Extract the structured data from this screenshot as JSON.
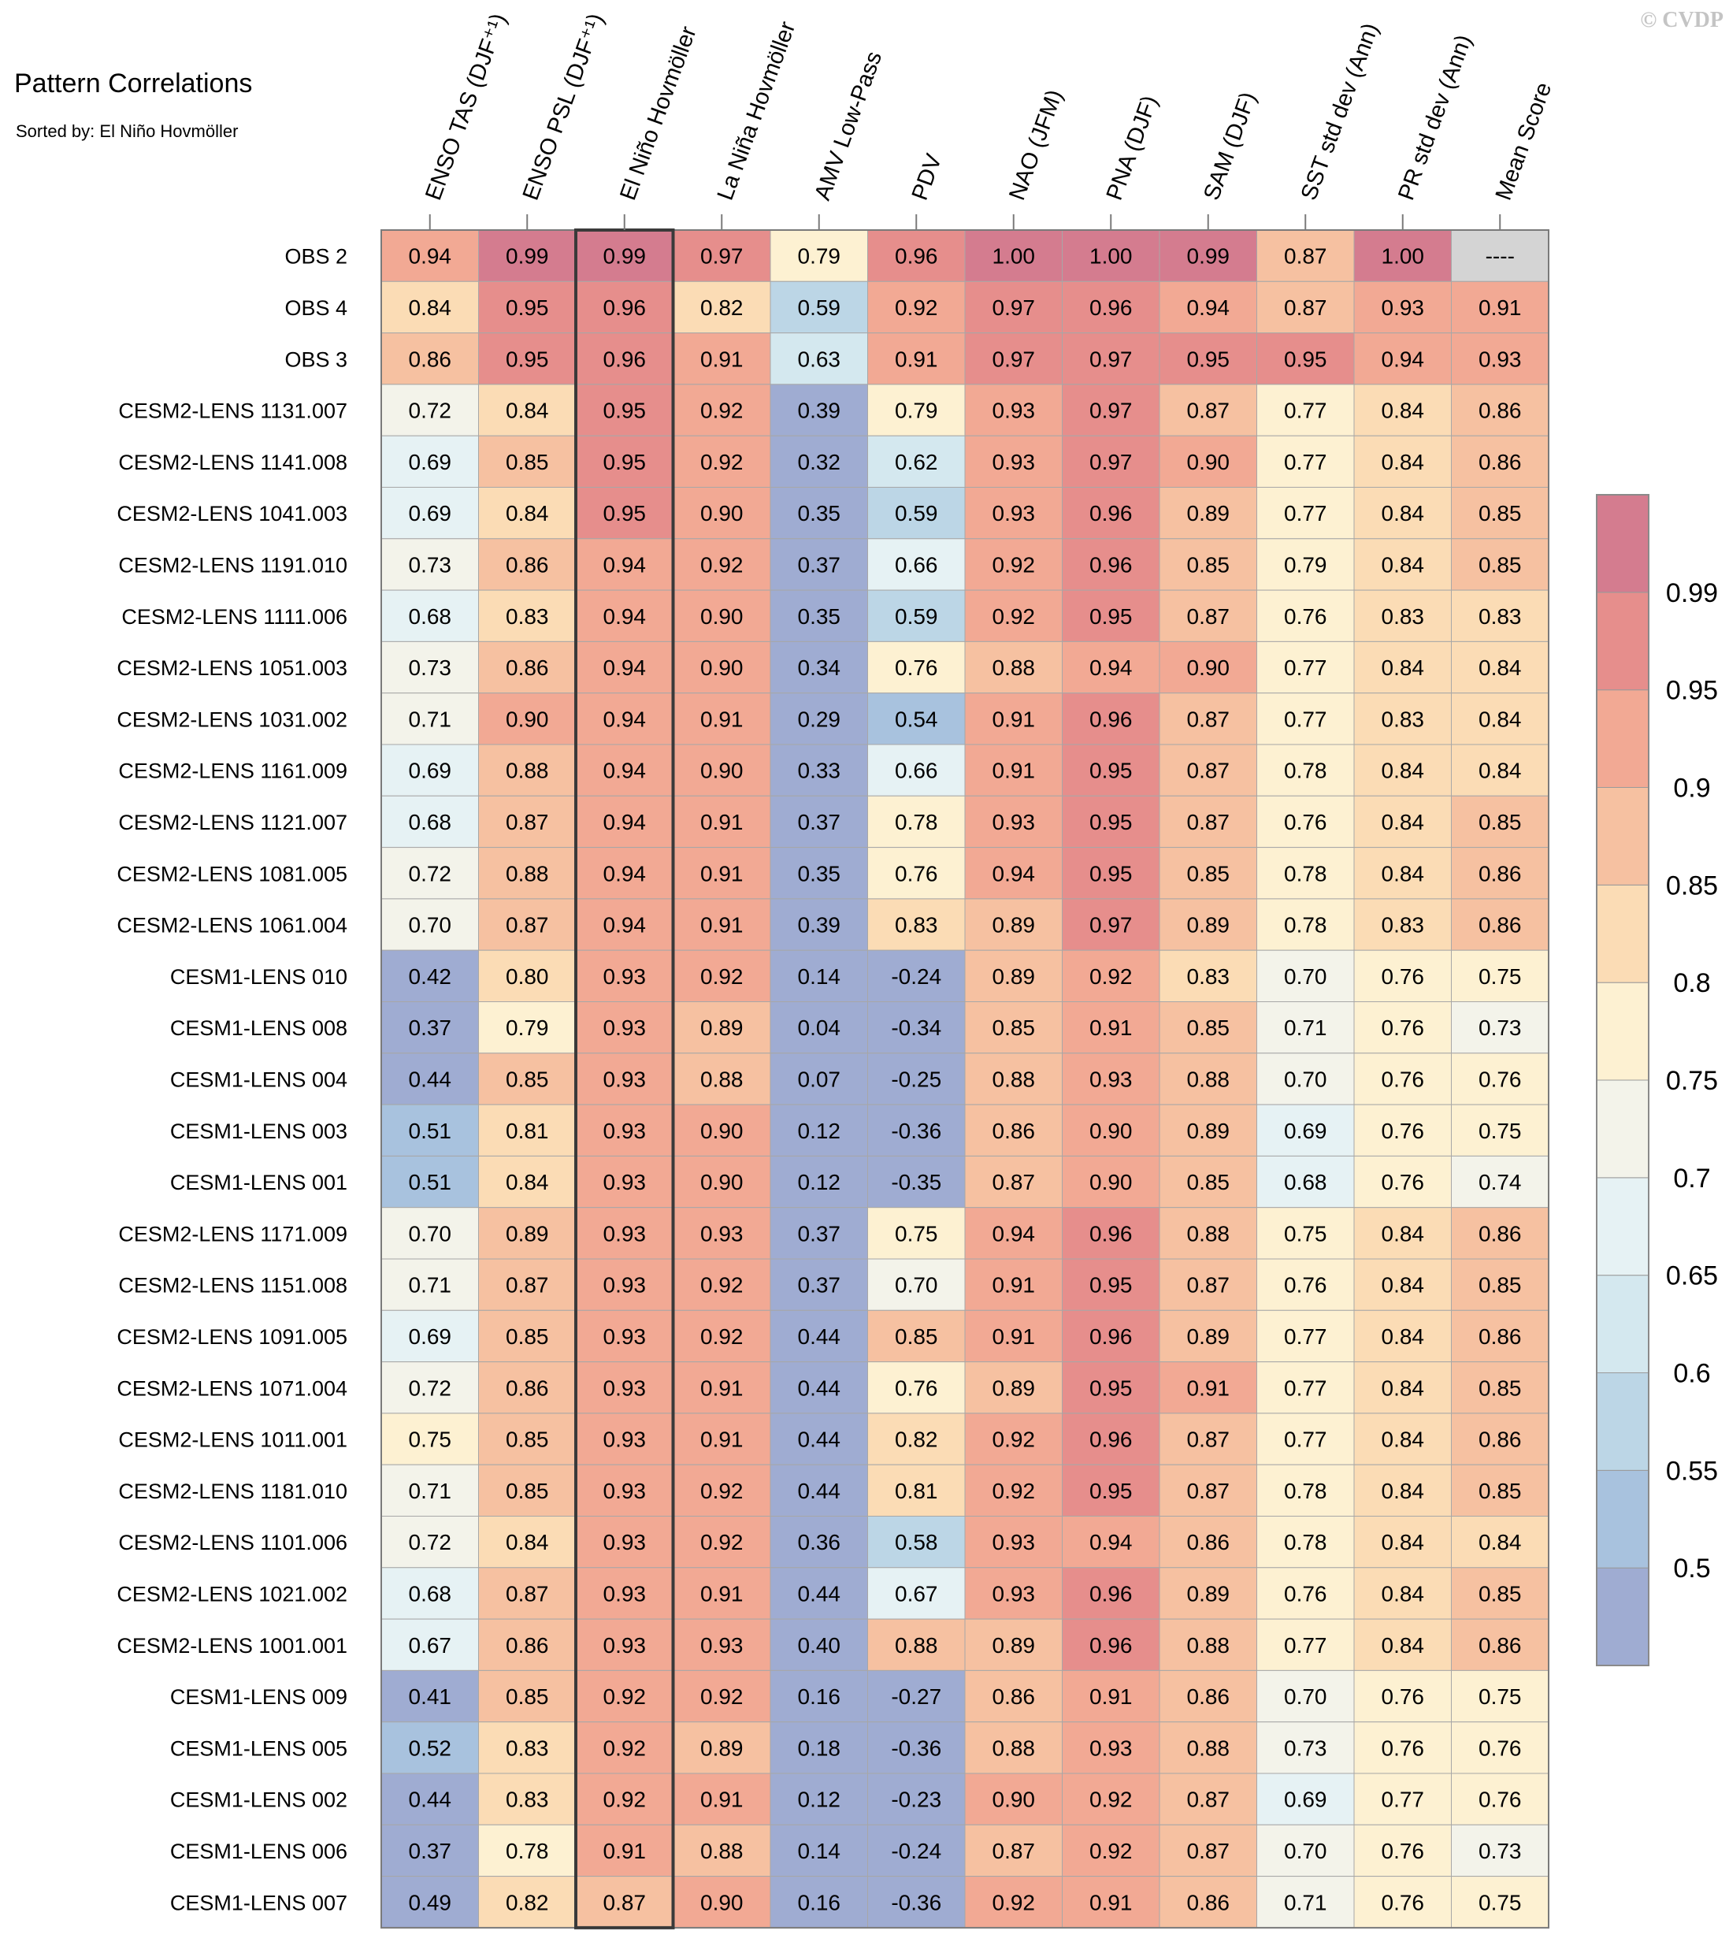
{
  "copyright": "© CVDP",
  "chart_data": {
    "type": "heatmap",
    "title": "Pattern Correlations",
    "subtitle": "Sorted by: El Niño Hovmöller",
    "columns": [
      "ENSO TAS (DJF⁺¹)",
      "ENSO PSL (DJF⁺¹)",
      "El Niño Hovmöller",
      "La Niña Hovmöller",
      "AMV Low-Pass",
      "PDV",
      "NAO (JFM)",
      "PNA (DJF)",
      "SAM (DJF)",
      "SST std dev (Ann)",
      "PR std dev (Ann)",
      "Mean Score"
    ],
    "highlighted_column": "El Niño Hovmöller",
    "rows": [
      {
        "name": "OBS 2",
        "values": [
          "0.94",
          "0.99",
          "0.99",
          "0.97",
          "0.79",
          "0.96",
          "1.00",
          "1.00",
          "0.99",
          "0.87",
          "1.00",
          "----"
        ]
      },
      {
        "name": "OBS 4",
        "values": [
          "0.84",
          "0.95",
          "0.96",
          "0.82",
          "0.59",
          "0.92",
          "0.97",
          "0.96",
          "0.94",
          "0.87",
          "0.93",
          "0.91"
        ]
      },
      {
        "name": "OBS 3",
        "values": [
          "0.86",
          "0.95",
          "0.96",
          "0.91",
          "0.63",
          "0.91",
          "0.97",
          "0.97",
          "0.95",
          "0.95",
          "0.94",
          "0.93"
        ]
      },
      {
        "name": "CESM2-LENS 1131.007",
        "values": [
          "0.72",
          "0.84",
          "0.95",
          "0.92",
          "0.39",
          "0.79",
          "0.93",
          "0.97",
          "0.87",
          "0.77",
          "0.84",
          "0.86"
        ]
      },
      {
        "name": "CESM2-LENS 1141.008",
        "values": [
          "0.69",
          "0.85",
          "0.95",
          "0.92",
          "0.32",
          "0.62",
          "0.93",
          "0.97",
          "0.90",
          "0.77",
          "0.84",
          "0.86"
        ]
      },
      {
        "name": "CESM2-LENS 1041.003",
        "values": [
          "0.69",
          "0.84",
          "0.95",
          "0.90",
          "0.35",
          "0.59",
          "0.93",
          "0.96",
          "0.89",
          "0.77",
          "0.84",
          "0.85"
        ]
      },
      {
        "name": "CESM2-LENS 1191.010",
        "values": [
          "0.73",
          "0.86",
          "0.94",
          "0.92",
          "0.37",
          "0.66",
          "0.92",
          "0.96",
          "0.85",
          "0.79",
          "0.84",
          "0.85"
        ]
      },
      {
        "name": "CESM2-LENS 1111.006",
        "values": [
          "0.68",
          "0.83",
          "0.94",
          "0.90",
          "0.35",
          "0.59",
          "0.92",
          "0.95",
          "0.87",
          "0.76",
          "0.83",
          "0.83"
        ]
      },
      {
        "name": "CESM2-LENS 1051.003",
        "values": [
          "0.73",
          "0.86",
          "0.94",
          "0.90",
          "0.34",
          "0.76",
          "0.88",
          "0.94",
          "0.90",
          "0.77",
          "0.84",
          "0.84"
        ]
      },
      {
        "name": "CESM2-LENS 1031.002",
        "values": [
          "0.71",
          "0.90",
          "0.94",
          "0.91",
          "0.29",
          "0.54",
          "0.91",
          "0.96",
          "0.87",
          "0.77",
          "0.83",
          "0.84"
        ]
      },
      {
        "name": "CESM2-LENS 1161.009",
        "values": [
          "0.69",
          "0.88",
          "0.94",
          "0.90",
          "0.33",
          "0.66",
          "0.91",
          "0.95",
          "0.87",
          "0.78",
          "0.84",
          "0.84"
        ]
      },
      {
        "name": "CESM2-LENS 1121.007",
        "values": [
          "0.68",
          "0.87",
          "0.94",
          "0.91",
          "0.37",
          "0.78",
          "0.93",
          "0.95",
          "0.87",
          "0.76",
          "0.84",
          "0.85"
        ]
      },
      {
        "name": "CESM2-LENS 1081.005",
        "values": [
          "0.72",
          "0.88",
          "0.94",
          "0.91",
          "0.35",
          "0.76",
          "0.94",
          "0.95",
          "0.85",
          "0.78",
          "0.84",
          "0.86"
        ]
      },
      {
        "name": "CESM2-LENS 1061.004",
        "values": [
          "0.70",
          "0.87",
          "0.94",
          "0.91",
          "0.39",
          "0.83",
          "0.89",
          "0.97",
          "0.89",
          "0.78",
          "0.83",
          "0.86"
        ]
      },
      {
        "name": "CESM1-LENS 010",
        "values": [
          "0.42",
          "0.80",
          "0.93",
          "0.92",
          "0.14",
          "-0.24",
          "0.89",
          "0.92",
          "0.83",
          "0.70",
          "0.76",
          "0.75"
        ]
      },
      {
        "name": "CESM1-LENS 008",
        "values": [
          "0.37",
          "0.79",
          "0.93",
          "0.89",
          "0.04",
          "-0.34",
          "0.85",
          "0.91",
          "0.85",
          "0.71",
          "0.76",
          "0.73"
        ]
      },
      {
        "name": "CESM1-LENS 004",
        "values": [
          "0.44",
          "0.85",
          "0.93",
          "0.88",
          "0.07",
          "-0.25",
          "0.88",
          "0.93",
          "0.88",
          "0.70",
          "0.76",
          "0.76"
        ]
      },
      {
        "name": "CESM1-LENS 003",
        "values": [
          "0.51",
          "0.81",
          "0.93",
          "0.90",
          "0.12",
          "-0.36",
          "0.86",
          "0.90",
          "0.89",
          "0.69",
          "0.76",
          "0.75"
        ]
      },
      {
        "name": "CESM1-LENS 001",
        "values": [
          "0.51",
          "0.84",
          "0.93",
          "0.90",
          "0.12",
          "-0.35",
          "0.87",
          "0.90",
          "0.85",
          "0.68",
          "0.76",
          "0.74"
        ]
      },
      {
        "name": "CESM2-LENS 1171.009",
        "values": [
          "0.70",
          "0.89",
          "0.93",
          "0.93",
          "0.37",
          "0.75",
          "0.94",
          "0.96",
          "0.88",
          "0.75",
          "0.84",
          "0.86"
        ]
      },
      {
        "name": "CESM2-LENS 1151.008",
        "values": [
          "0.71",
          "0.87",
          "0.93",
          "0.92",
          "0.37",
          "0.70",
          "0.91",
          "0.95",
          "0.87",
          "0.76",
          "0.84",
          "0.85"
        ]
      },
      {
        "name": "CESM2-LENS 1091.005",
        "values": [
          "0.69",
          "0.85",
          "0.93",
          "0.92",
          "0.44",
          "0.85",
          "0.91",
          "0.96",
          "0.89",
          "0.77",
          "0.84",
          "0.86"
        ]
      },
      {
        "name": "CESM2-LENS 1071.004",
        "values": [
          "0.72",
          "0.86",
          "0.93",
          "0.91",
          "0.44",
          "0.76",
          "0.89",
          "0.95",
          "0.91",
          "0.77",
          "0.84",
          "0.85"
        ]
      },
      {
        "name": "CESM2-LENS 1011.001",
        "values": [
          "0.75",
          "0.85",
          "0.93",
          "0.91",
          "0.44",
          "0.82",
          "0.92",
          "0.96",
          "0.87",
          "0.77",
          "0.84",
          "0.86"
        ]
      },
      {
        "name": "CESM2-LENS 1181.010",
        "values": [
          "0.71",
          "0.85",
          "0.93",
          "0.92",
          "0.44",
          "0.81",
          "0.92",
          "0.95",
          "0.87",
          "0.78",
          "0.84",
          "0.85"
        ]
      },
      {
        "name": "CESM2-LENS 1101.006",
        "values": [
          "0.72",
          "0.84",
          "0.93",
          "0.92",
          "0.36",
          "0.58",
          "0.93",
          "0.94",
          "0.86",
          "0.78",
          "0.84",
          "0.84"
        ]
      },
      {
        "name": "CESM2-LENS 1021.002",
        "values": [
          "0.68",
          "0.87",
          "0.93",
          "0.91",
          "0.44",
          "0.67",
          "0.93",
          "0.96",
          "0.89",
          "0.76",
          "0.84",
          "0.85"
        ]
      },
      {
        "name": "CESM2-LENS 1001.001",
        "values": [
          "0.67",
          "0.86",
          "0.93",
          "0.93",
          "0.40",
          "0.88",
          "0.89",
          "0.96",
          "0.88",
          "0.77",
          "0.84",
          "0.86"
        ]
      },
      {
        "name": "CESM1-LENS 009",
        "values": [
          "0.41",
          "0.85",
          "0.92",
          "0.92",
          "0.16",
          "-0.27",
          "0.86",
          "0.91",
          "0.86",
          "0.70",
          "0.76",
          "0.75"
        ]
      },
      {
        "name": "CESM1-LENS 005",
        "values": [
          "0.52",
          "0.83",
          "0.92",
          "0.89",
          "0.18",
          "-0.36",
          "0.88",
          "0.93",
          "0.88",
          "0.73",
          "0.76",
          "0.76"
        ]
      },
      {
        "name": "CESM1-LENS 002",
        "values": [
          "0.44",
          "0.83",
          "0.92",
          "0.91",
          "0.12",
          "-0.23",
          "0.90",
          "0.92",
          "0.87",
          "0.69",
          "0.77",
          "0.76"
        ]
      },
      {
        "name": "CESM1-LENS 006",
        "values": [
          "0.37",
          "0.78",
          "0.91",
          "0.88",
          "0.14",
          "-0.24",
          "0.87",
          "0.92",
          "0.87",
          "0.70",
          "0.76",
          "0.73"
        ]
      },
      {
        "name": "CESM1-LENS 007",
        "values": [
          "0.49",
          "0.82",
          "0.87",
          "0.90",
          "0.16",
          "-0.36",
          "0.92",
          "0.91",
          "0.86",
          "0.71",
          "0.76",
          "0.75"
        ]
      }
    ],
    "missing_color": "#d4d4d4",
    "colorbar": {
      "tick_labels": [
        "0.5",
        "0.55",
        "0.6",
        "0.65",
        "0.7",
        "0.75",
        "0.8",
        "0.85",
        "0.9",
        "0.95",
        "0.99"
      ],
      "colors": [
        "#9facd2",
        "#a8c2de",
        "#bcd6e6",
        "#d4e8ef",
        "#e6f2f4",
        "#f3f3ea",
        "#fdf1d2",
        "#fbdcb5",
        "#f6c1a1",
        "#f2a994",
        "#e68e8c",
        "#d47c8f"
      ]
    }
  }
}
